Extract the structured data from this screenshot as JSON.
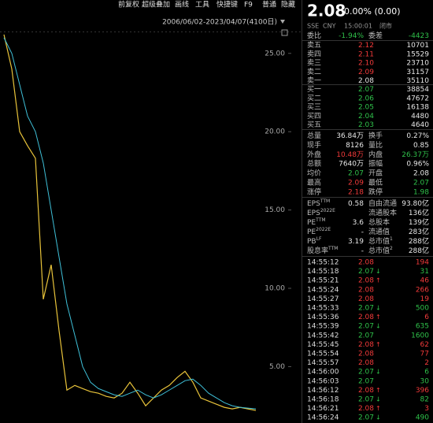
{
  "toolbar": [
    "前复权",
    "超级叠加",
    "画线",
    "工具",
    "快捷键",
    "F9",
    "普通",
    "隐藏"
  ],
  "range": "2006/06/02-2023/04/07(4100日)",
  "chart_data": {
    "type": "line",
    "series": [
      {
        "color": "#e8c33a",
        "values": [
          26.2,
          24.0,
          20.0,
          19.1,
          18.3,
          9.3,
          11.5,
          7.3,
          3.5,
          3.8,
          3.6,
          3.4,
          3.3,
          3.1,
          3.0,
          3.3,
          4.0,
          3.3,
          2.5,
          3.0,
          3.5,
          3.8,
          4.3,
          4.7,
          4.0,
          3.0,
          2.8,
          2.6,
          2.4,
          2.3,
          2.4,
          2.3,
          2.2
        ]
      },
      {
        "color": "#3fc0d8",
        "values": [
          26,
          25,
          23,
          21,
          20,
          18,
          15,
          12,
          9,
          7,
          5,
          4,
          3.6,
          3.4,
          3.2,
          3.1,
          3.3,
          3.5,
          3.2,
          3.0,
          3.2,
          3.5,
          3.8,
          4.1,
          4.2,
          3.8,
          3.3,
          3.0,
          2.7,
          2.5,
          2.4,
          2.35,
          2.3
        ]
      }
    ],
    "ylim": [
      1.4,
      27.0
    ],
    "yticks": [
      {
        "value": 25,
        "label": "25.00"
      },
      {
        "value": 20,
        "label": "20.00"
      },
      {
        "value": 15,
        "label": "15.00"
      },
      {
        "value": 10,
        "label": "10.00"
      },
      {
        "value": 5,
        "label": "5.00"
      }
    ]
  },
  "panel": {
    "price": "2.08",
    "change": "0.00% (0.00)",
    "meta": [
      "SSE",
      "CNY",
      "15:00:01",
      "闭市"
    ],
    "sections": [
      {
        "rows": [
          [
            {
              "text": "委比"
            },
            {
              "text": "-1.94%",
              "color": "#2fc14a"
            },
            {
              "text": "委差"
            },
            {
              "text": "-4423",
              "color": "#2fc14a"
            }
          ]
        ]
      },
      {
        "rows": [
          [
            {
              "text": "卖五"
            },
            {
              "text": "2.12",
              "color": "#f23a3a"
            },
            {
              "text": "10701"
            }
          ],
          [
            {
              "text": "卖四"
            },
            {
              "text": "2.11",
              "color": "#f23a3a"
            },
            {
              "text": "15529"
            }
          ],
          [
            {
              "text": "卖三"
            },
            {
              "text": "2.10",
              "color": "#f23a3a"
            },
            {
              "text": "23710"
            }
          ],
          [
            {
              "text": "卖二"
            },
            {
              "text": "2.09",
              "color": "#f23a3a"
            },
            {
              "text": "31157"
            }
          ],
          [
            {
              "text": "卖一"
            },
            {
              "text": "2.08"
            },
            {
              "text": "35110"
            }
          ]
        ]
      },
      {
        "rows": [
          [
            {
              "text": "买一"
            },
            {
              "text": "2.07",
              "color": "#2fc14a"
            },
            {
              "text": "38854"
            }
          ],
          [
            {
              "text": "买二"
            },
            {
              "text": "2.06",
              "color": "#2fc14a"
            },
            {
              "text": "47672"
            }
          ],
          [
            {
              "text": "买三"
            },
            {
              "text": "2.05",
              "color": "#2fc14a"
            },
            {
              "text": "16138"
            }
          ],
          [
            {
              "text": "买四"
            },
            {
              "text": "2.04",
              "color": "#2fc14a"
            },
            {
              "text": "4480"
            }
          ],
          [
            {
              "text": "买五"
            },
            {
              "text": "2.03",
              "color": "#2fc14a"
            },
            {
              "text": "4640"
            }
          ]
        ]
      },
      {
        "rows": [
          [
            {
              "text": "总量"
            },
            {
              "text": "36.84万"
            },
            {
              "text": "换手"
            },
            {
              "text": "0.27%"
            }
          ],
          [
            {
              "text": "现手"
            },
            {
              "text": "8126"
            },
            {
              "text": "量比"
            },
            {
              "text": "0.85"
            }
          ],
          [
            {
              "text": "外盘"
            },
            {
              "text": "10.48万",
              "color": "#f23a3a"
            },
            {
              "text": "内盘"
            },
            {
              "text": "26.37万",
              "color": "#2fc14a"
            }
          ],
          [
            {
              "text": "总额"
            },
            {
              "text": "7640万"
            },
            {
              "text": "振幅"
            },
            {
              "text": "0.96%"
            }
          ],
          [
            {
              "text": "均价"
            },
            {
              "text": "2.07",
              "color": "#2fc14a"
            },
            {
              "text": "开盘"
            },
            {
              "text": "2.08"
            }
          ],
          [
            {
              "text": "最高"
            },
            {
              "text": "2.09",
              "color": "#f23a3a"
            },
            {
              "text": "最低"
            },
            {
              "text": "2.07",
              "color": "#2fc14a"
            }
          ],
          [
            {
              "text": "涨停"
            },
            {
              "text": "2.18",
              "color": "#f23a3a"
            },
            {
              "text": "跌停"
            },
            {
              "text": "1.98",
              "color": "#2fc14a"
            }
          ]
        ]
      },
      {
        "rows": [
          [
            {
              "text": "EPS",
              "sup": "TTM"
            },
            {
              "text": "0.58"
            },
            {
              "text": "自由流通"
            },
            {
              "text": "93.80亿"
            }
          ],
          [
            {
              "text": "EPS",
              "sup": "2022E"
            },
            {
              "text": "流通股本"
            },
            {
              "text": "136亿"
            }
          ],
          [
            {
              "text": "PE",
              "sup": "TTM"
            },
            {
              "text": "3.6"
            },
            {
              "text": "总股本"
            },
            {
              "text": "139亿"
            }
          ],
          [
            {
              "text": "PE",
              "sup": "2022E"
            },
            {
              "text": "-"
            },
            {
              "text": "流通值"
            },
            {
              "text": "283亿"
            }
          ],
          [
            {
              "text": "PB",
              "sup": "LF"
            },
            {
              "text": "3.19"
            },
            {
              "text": "总市值",
              "sup": "1"
            },
            {
              "text": "288亿"
            }
          ],
          [
            {
              "text": "股息率",
              "sup": "TTM"
            },
            {
              "text": "-"
            },
            {
              "text": "总市值",
              "sup": "2"
            },
            {
              "text": "288亿"
            }
          ]
        ]
      }
    ],
    "trades": [
      {
        "time": "14:55:12",
        "price": "2.08",
        "volume": "194",
        "color": "#f23a3a"
      },
      {
        "time": "14:55:18",
        "price": "2.07",
        "arrow": "↓",
        "volume": "31",
        "color": "#2fc14a"
      },
      {
        "time": "14:55:21",
        "price": "2.08",
        "arrow": "↑",
        "volume": "46",
        "color": "#f23a3a"
      },
      {
        "time": "14:55:24",
        "price": "2.08",
        "volume": "266",
        "color": "#f23a3a"
      },
      {
        "time": "14:55:27",
        "price": "2.08",
        "volume": "19",
        "color": "#f23a3a"
      },
      {
        "time": "14:55:33",
        "price": "2.07",
        "arrow": "↓",
        "volume": "500",
        "color": "#2fc14a"
      },
      {
        "time": "14:55:36",
        "price": "2.08",
        "arrow": "↑",
        "volume": "6",
        "color": "#f23a3a"
      },
      {
        "time": "14:55:39",
        "price": "2.07",
        "arrow": "↓",
        "volume": "635",
        "color": "#2fc14a"
      },
      {
        "time": "14:55:42",
        "price": "2.07",
        "volume": "1600",
        "color": "#2fc14a"
      },
      {
        "time": "14:55:45",
        "price": "2.08",
        "arrow": "↑",
        "volume": "62",
        "color": "#f23a3a"
      },
      {
        "time": "14:55:54",
        "price": "2.08",
        "volume": "77",
        "color": "#f23a3a"
      },
      {
        "time": "14:55:57",
        "price": "2.08",
        "volume": "2",
        "color": "#f23a3a"
      },
      {
        "time": "14:56:00",
        "price": "2.07",
        "arrow": "↓",
        "volume": "6",
        "color": "#2fc14a"
      },
      {
        "time": "14:56:03",
        "price": "2.07",
        "volume": "30",
        "color": "#2fc14a"
      },
      {
        "time": "14:56:12",
        "price": "2.08",
        "arrow": "↑",
        "volume": "396",
        "color": "#f23a3a"
      },
      {
        "time": "14:56:18",
        "price": "2.07",
        "arrow": "↓",
        "volume": "82",
        "color": "#2fc14a"
      },
      {
        "time": "14:56:21",
        "price": "2.08",
        "arrow": "↑",
        "volume": "3",
        "color": "#f23a3a"
      },
      {
        "time": "14:56:24",
        "price": "2.07",
        "arrow": "↓",
        "volume": "490",
        "color": "#2fc14a"
      }
    ]
  }
}
